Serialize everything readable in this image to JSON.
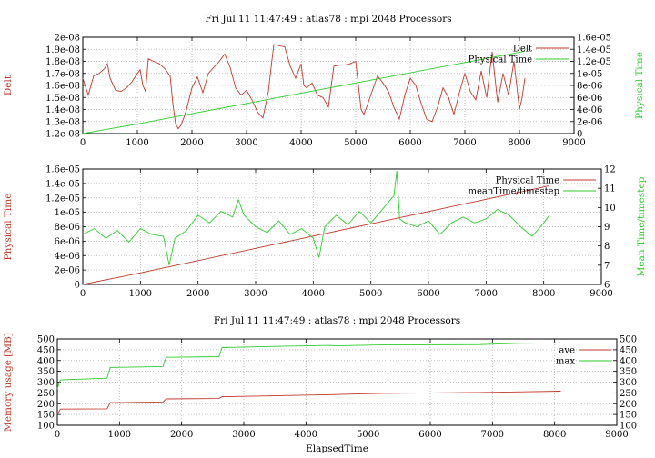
{
  "chart_data": [
    {
      "type": "line",
      "title": "Fri Jul 11 11:47:49 : atlas78 : mpi 2048 Processors",
      "xlabel": "",
      "xlim": [
        0,
        9000
      ],
      "xticks": [
        "0",
        "1000",
        "2000",
        "3000",
        "4000",
        "5000",
        "6000",
        "7000",
        "8000",
        "9000"
      ],
      "ylabel": "Delt",
      "ylim": [
        1.2e-08,
        2e-08
      ],
      "yticks": [
        "1.2e-08",
        "1.3e-08",
        "1.4e-08",
        "1.5e-08",
        "1.6e-08",
        "1.7e-08",
        "1.8e-08",
        "1.9e-08",
        "2e-08"
      ],
      "y2label": "Physical Time",
      "y2lim": [
        0,
        1.6e-05
      ],
      "y2ticks": [
        "0",
        "2e-06",
        "4e-06",
        "6e-06",
        "8e-06",
        "1e-05",
        "1.2e-05",
        "1.4e-05",
        "1.6e-05"
      ],
      "grid": true,
      "legend_position": "top-right",
      "series": [
        {
          "name": "Delt",
          "axis": "y",
          "color": "#c0392b",
          "x": [
            0,
            100,
            200,
            300,
            400,
            450,
            500,
            600,
            700,
            800,
            900,
            1000,
            1050,
            1100,
            1150,
            1200,
            1300,
            1400,
            1500,
            1600,
            1650,
            1700,
            1750,
            1800,
            1850,
            1900,
            2000,
            2100,
            2200,
            2300,
            2400,
            2500,
            2600,
            2700,
            2800,
            2900,
            3000,
            3100,
            3200,
            3300,
            3400,
            3450,
            3500,
            3600,
            3700,
            3800,
            3900,
            4000,
            4050,
            4100,
            4200,
            4300,
            4400,
            4500,
            4600,
            4700,
            4800,
            4900,
            5000,
            5100,
            5150,
            5200,
            5300,
            5400,
            5500,
            5600,
            5700,
            5800,
            5900,
            6000,
            6100,
            6200,
            6300,
            6400,
            6500,
            6600,
            6700,
            6800,
            6900,
            7000,
            7100,
            7200,
            7300,
            7400,
            7500,
            7600,
            7700,
            7800,
            7900,
            8000,
            8050,
            8100
          ],
          "y": [
            1.66e-08,
            1.52e-08,
            1.68e-08,
            1.7e-08,
            1.74e-08,
            1.78e-08,
            1.66e-08,
            1.56e-08,
            1.55e-08,
            1.58e-08,
            1.63e-08,
            1.7e-08,
            1.73e-08,
            1.6e-08,
            1.55e-08,
            1.82e-08,
            1.8e-08,
            1.78e-08,
            1.74e-08,
            1.68e-08,
            1.45e-08,
            1.28e-08,
            1.24e-08,
            1.27e-08,
            1.33e-08,
            1.4e-08,
            1.58e-08,
            1.67e-08,
            1.54e-08,
            1.7e-08,
            1.75e-08,
            1.8e-08,
            1.86e-08,
            1.75e-08,
            1.58e-08,
            1.52e-08,
            1.56e-08,
            1.48e-08,
            1.38e-08,
            1.33e-08,
            1.55e-08,
            1.75e-08,
            1.94e-08,
            1.93e-08,
            1.92e-08,
            1.76e-08,
            1.66e-08,
            1.78e-08,
            1.6e-08,
            1.58e-08,
            1.62e-08,
            1.52e-08,
            1.5e-08,
            1.42e-08,
            1.76e-08,
            1.77e-08,
            1.77e-08,
            1.78e-08,
            1.8e-08,
            1.4e-08,
            1.36e-08,
            1.42e-08,
            1.55e-08,
            1.68e-08,
            1.62e-08,
            1.55e-08,
            1.42e-08,
            1.32e-08,
            1.52e-08,
            1.66e-08,
            1.6e-08,
            1.45e-08,
            1.32e-08,
            1.3e-08,
            1.42e-08,
            1.58e-08,
            1.5e-08,
            1.36e-08,
            1.54e-08,
            1.7e-08,
            1.55e-08,
            1.48e-08,
            1.72e-08,
            1.5e-08,
            1.88e-08,
            1.46e-08,
            1.7e-08,
            1.52e-08,
            1.8e-08,
            1.4e-08,
            1.5e-08,
            1.66e-08
          ]
        },
        {
          "name": "Physical Time",
          "axis": "y2",
          "color": "#2ecc2e",
          "x": [
            0,
            1000,
            2000,
            3000,
            4000,
            5000,
            6000,
            7000,
            8000,
            8100
          ],
          "y": [
            0,
            1.6e-06,
            3.3e-06,
            5e-06,
            6.7e-06,
            8.4e-06,
            1.01e-05,
            1.18e-05,
            1.35e-05,
            1.37e-05
          ]
        }
      ]
    },
    {
      "type": "line",
      "title": "",
      "xlabel": "",
      "xlim": [
        0,
        9000
      ],
      "xticks": [
        "0",
        "1000",
        "2000",
        "3000",
        "4000",
        "5000",
        "6000",
        "7000",
        "8000",
        "9000"
      ],
      "ylabel": "Physical Time",
      "ylim": [
        0,
        1.6e-05
      ],
      "yticks": [
        "0",
        "2e-06",
        "4e-06",
        "6e-06",
        "8e-06",
        "1e-05",
        "1.2e-05",
        "1.4e-05",
        "1.6e-05"
      ],
      "y2label": "Mean Time/timestep",
      "y2lim": [
        6,
        12
      ],
      "y2ticks": [
        "6",
        "7",
        "8",
        "9",
        "10",
        "11",
        "12"
      ],
      "grid": true,
      "legend_position": "top-right",
      "series": [
        {
          "name": "Physical Time",
          "axis": "y",
          "color": "#c0392b",
          "x": [
            0,
            1000,
            2000,
            3000,
            4000,
            5000,
            6000,
            7000,
            8000,
            8100
          ],
          "y": [
            0,
            1.6e-06,
            3.3e-06,
            5e-06,
            6.7e-06,
            8.4e-06,
            1.01e-05,
            1.18e-05,
            1.35e-05,
            1.37e-05
          ]
        },
        {
          "name": "meanTime/timestep",
          "axis": "y2",
          "color": "#2ecc2e",
          "x": [
            0,
            200,
            400,
            600,
            800,
            1000,
            1200,
            1400,
            1500,
            1600,
            1800,
            2000,
            2200,
            2400,
            2600,
            2700,
            2800,
            3000,
            3200,
            3400,
            3600,
            3800,
            4000,
            4100,
            4200,
            4400,
            4600,
            4800,
            5000,
            5200,
            5400,
            5450,
            5500,
            5600,
            5800,
            6000,
            6200,
            6400,
            6600,
            6800,
            7000,
            7200,
            7400,
            7600,
            7800,
            8000,
            8100
          ],
          "y": [
            8.6,
            8.9,
            8.4,
            8.8,
            8.2,
            8.9,
            8.6,
            8.5,
            7.0,
            8.4,
            8.8,
            9.6,
            9.2,
            9.8,
            9.5,
            10.4,
            9.6,
            9.0,
            8.7,
            9.3,
            8.6,
            8.9,
            8.4,
            7.4,
            9.0,
            9.6,
            9.1,
            9.8,
            9.2,
            9.9,
            10.6,
            11.9,
            9.4,
            9.2,
            9.0,
            9.3,
            8.6,
            9.2,
            9.5,
            9.2,
            9.4,
            9.9,
            9.6,
            9.0,
            8.5,
            9.2,
            9.6
          ]
        }
      ]
    },
    {
      "type": "line",
      "title": "Fri Jul 11 11:47:49 : atlas78 : mpi 2048 Processors",
      "xlabel": "ElapsedTime",
      "xlim": [
        0,
        9000
      ],
      "xticks": [
        "0",
        "1000",
        "2000",
        "3000",
        "4000",
        "5000",
        "6000",
        "7000",
        "8000",
        "9000"
      ],
      "ylabel": "Memory usage [MB]",
      "ylim": [
        100,
        500
      ],
      "yticks": [
        "100",
        "150",
        "200",
        "250",
        "300",
        "350",
        "400",
        "450",
        "500"
      ],
      "y2label": "",
      "y2lim": [
        100,
        500
      ],
      "y2ticks": [
        "100",
        "150",
        "200",
        "250",
        "300",
        "350",
        "400",
        "450",
        "500"
      ],
      "grid": true,
      "legend_position": "top-right",
      "series": [
        {
          "name": "ave",
          "axis": "y",
          "color": "#c0392b",
          "x": [
            0,
            50,
            800,
            850,
            1700,
            1750,
            2600,
            2650,
            3400,
            4400,
            5200,
            6000,
            6800,
            7500,
            8100
          ],
          "y": [
            150,
            175,
            176,
            205,
            208,
            222,
            224,
            232,
            236,
            242,
            248,
            250,
            252,
            255,
            258
          ]
        },
        {
          "name": "max",
          "axis": "y",
          "color": "#2ecc2e",
          "x": [
            0,
            50,
            800,
            850,
            1700,
            1750,
            2600,
            2650,
            3400,
            4400,
            4450,
            5200,
            6800,
            7400,
            8100
          ],
          "y": [
            270,
            310,
            318,
            368,
            372,
            415,
            418,
            460,
            465,
            470,
            468,
            472,
            474,
            480,
            482
          ]
        }
      ]
    }
  ]
}
